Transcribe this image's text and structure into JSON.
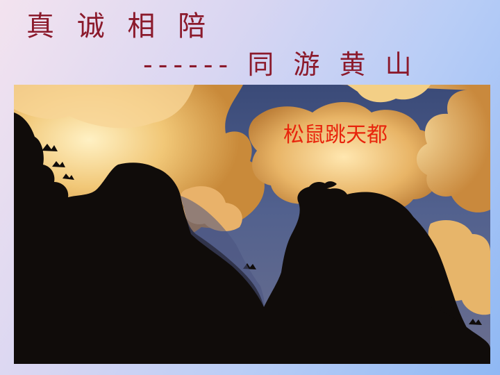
{
  "slide": {
    "title": "真 诚 相 陪",
    "subtitle": "------ 同 游 黄 山",
    "photo_caption": "松鼠跳天都"
  },
  "colors": {
    "title_text": "#8b1a2c",
    "caption_text": "#e8240c"
  }
}
